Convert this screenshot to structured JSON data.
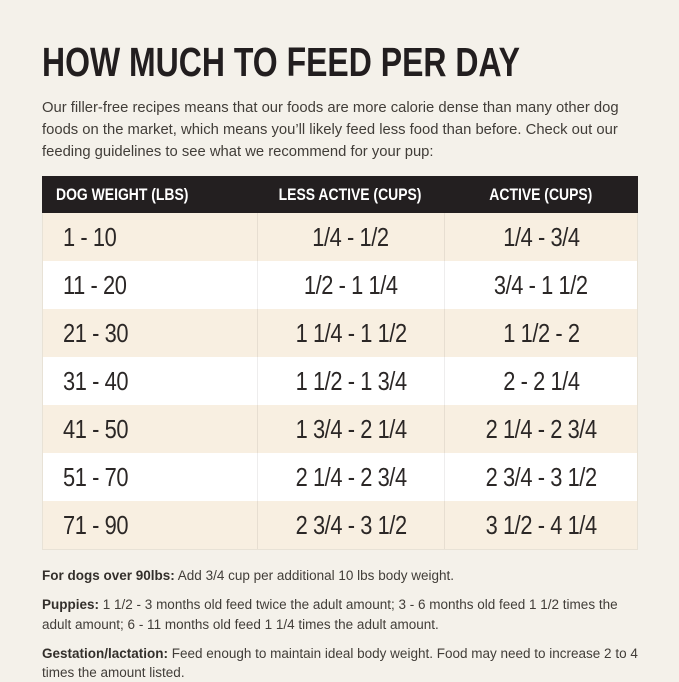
{
  "header": {
    "title": "HOW MUCH TO FEED PER DAY",
    "intro": "Our filler-free recipes means that our foods are more calorie dense than many other dog foods on the market, which means you’ll likely feed less food than before. Check out our feeding guidelines to see what we recommend for your pup:"
  },
  "table": {
    "columns": [
      "DOG WEIGHT (LBS)",
      "LESS ACTIVE (CUPS)",
      "ACTIVE (CUPS)"
    ],
    "rows": [
      {
        "weight": "1 - 10",
        "less_active": "1/4 - 1/2",
        "active": "1/4 - 3/4"
      },
      {
        "weight": "11 - 20",
        "less_active": "1/2 - 1 1/4",
        "active": "3/4 - 1 1/2"
      },
      {
        "weight": "21 - 30",
        "less_active": "1 1/4 - 1 1/2",
        "active": "1 1/2 - 2"
      },
      {
        "weight": "31 - 40",
        "less_active": "1 1/2 - 1 3/4",
        "active": "2 - 2 1/4"
      },
      {
        "weight": "41 - 50",
        "less_active": "1 3/4 - 2 1/4",
        "active": "2 1/4 - 2 3/4"
      },
      {
        "weight": "51 - 70",
        "less_active": "2 1/4 - 2 3/4",
        "active": "2 3/4 - 3 1/2"
      },
      {
        "weight": "71 - 90",
        "less_active": "2 3/4 - 3 1/2",
        "active": "3 1/2 - 4 1/4"
      }
    ]
  },
  "notes": [
    {
      "label": "For dogs over 90lbs:",
      "text": "Add 3/4 cup per additional 10 lbs body weight."
    },
    {
      "label": "Puppies:",
      "text": "1 1/2 - 3 months old feed twice the adult amount; 3 - 6 months old feed 1 1/2 times the adult amount; 6 - 11 months old feed 1 1/4 times the adult amount."
    },
    {
      "label": "Gestation/lactation:",
      "text": "Feed enough to maintain ideal body weight. Food may need to increase 2 to 4 times the amount listed."
    }
  ],
  "colors": {
    "page_background": "#F4F1EA",
    "table_header_background": "#231F20",
    "table_header_text": "#FFFFFF",
    "row_cream": "#F8EFE1",
    "row_white": "#FFFFFF",
    "title_text": "#221E1F",
    "body_text": "#413D38"
  }
}
